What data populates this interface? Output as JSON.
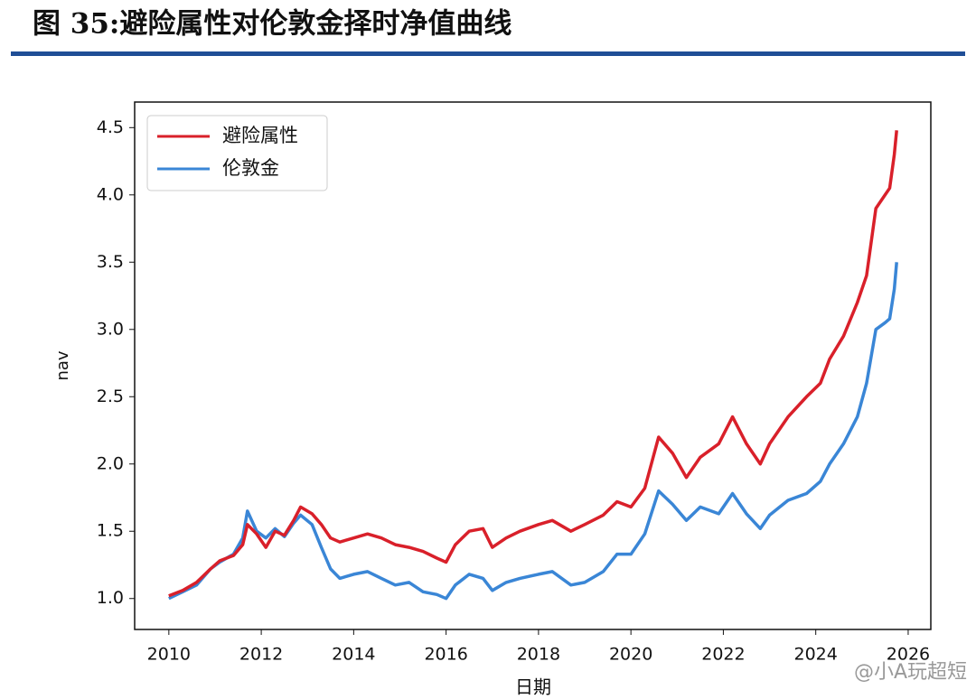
{
  "chart_data": {
    "type": "line",
    "title": "图 35:避险属性对伦敦金择时净值曲线",
    "xlabel": "日期",
    "ylabel": "nav",
    "watermark": "@小A玩超短",
    "legend": "upper left",
    "grid": false,
    "xlim": [
      2009.26,
      2026.49
    ],
    "ylim": [
      0.77,
      4.69
    ],
    "xticks": [
      2010,
      2012,
      2014,
      2016,
      2018,
      2020,
      2022,
      2024,
      2026
    ],
    "yticks": [
      {
        "value": 1,
        "label": "1.0"
      },
      1.5,
      {
        "value": 2,
        "label": "2.0"
      },
      2.5,
      {
        "value": 3,
        "label": "3.0"
      },
      3.5,
      {
        "value": 4,
        "label": "4.0"
      },
      4.5
    ],
    "x": [
      2010.0,
      2010.3,
      2010.6,
      2010.9,
      2011.1,
      2011.4,
      2011.6,
      2011.7,
      2011.9,
      2012.1,
      2012.3,
      2012.5,
      2012.7,
      2012.85,
      2013.1,
      2013.3,
      2013.5,
      2013.7,
      2014.0,
      2014.3,
      2014.6,
      2014.9,
      2015.2,
      2015.5,
      2015.8,
      2016.0,
      2016.2,
      2016.5,
      2016.8,
      2017.0,
      2017.3,
      2017.6,
      2018.0,
      2018.3,
      2018.7,
      2019.0,
      2019.4,
      2019.7,
      2020.0,
      2020.3,
      2020.6,
      2020.9,
      2021.2,
      2021.5,
      2021.9,
      2022.2,
      2022.5,
      2022.8,
      2023.0,
      2023.4,
      2023.8,
      2024.1,
      2024.3,
      2024.6,
      2024.9,
      2025.1,
      2025.3,
      2025.5,
      2025.6,
      2025.7,
      2025.75
    ],
    "series": [
      {
        "name": "避险属性",
        "color": "#d9202a",
        "values": [
          1.02,
          1.06,
          1.12,
          1.22,
          1.28,
          1.32,
          1.4,
          1.55,
          1.48,
          1.38,
          1.5,
          1.47,
          1.58,
          1.68,
          1.63,
          1.55,
          1.45,
          1.42,
          1.45,
          1.48,
          1.45,
          1.4,
          1.38,
          1.35,
          1.3,
          1.27,
          1.4,
          1.5,
          1.52,
          1.38,
          1.45,
          1.5,
          1.55,
          1.58,
          1.5,
          1.55,
          1.62,
          1.72,
          1.68,
          1.82,
          2.2,
          2.08,
          1.9,
          2.05,
          2.15,
          2.35,
          2.15,
          2.0,
          2.15,
          2.35,
          2.5,
          2.6,
          2.78,
          2.95,
          3.2,
          3.4,
          3.9,
          4.0,
          4.05,
          4.3,
          4.48
        ]
      },
      {
        "name": "伦敦金",
        "color": "#3a86d6",
        "values": [
          1.0,
          1.05,
          1.1,
          1.22,
          1.27,
          1.33,
          1.45,
          1.65,
          1.5,
          1.45,
          1.52,
          1.46,
          1.56,
          1.62,
          1.55,
          1.38,
          1.22,
          1.15,
          1.18,
          1.2,
          1.15,
          1.1,
          1.12,
          1.05,
          1.03,
          1.0,
          1.1,
          1.18,
          1.15,
          1.06,
          1.12,
          1.15,
          1.18,
          1.2,
          1.1,
          1.12,
          1.2,
          1.33,
          1.33,
          1.48,
          1.8,
          1.7,
          1.58,
          1.68,
          1.63,
          1.78,
          1.63,
          1.52,
          1.62,
          1.73,
          1.78,
          1.87,
          2.0,
          2.15,
          2.35,
          2.6,
          3.0,
          3.05,
          3.08,
          3.3,
          3.5
        ]
      }
    ]
  }
}
